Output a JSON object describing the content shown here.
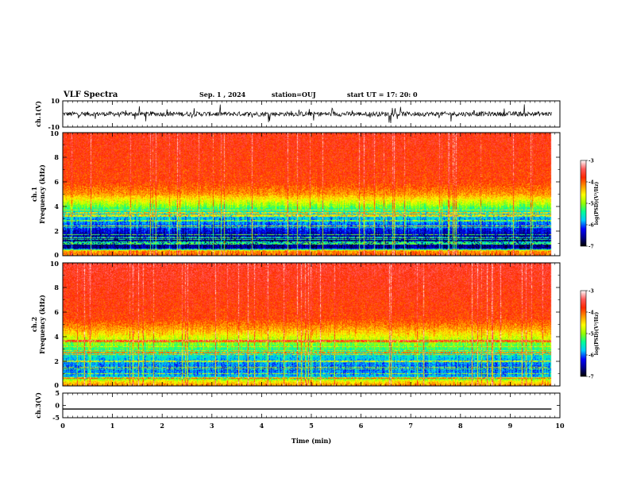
{
  "header": {
    "title": "VLF Spectra",
    "date": "Sep. 1 , 2024",
    "station": "station=OUJ",
    "start": "start UT = 17: 20: 0"
  },
  "colors": {
    "palette": [
      "#000000",
      "#00008b",
      "#0000ff",
      "#00c8ff",
      "#00ff96",
      "#96ff00",
      "#ffff00",
      "#ff9600",
      "#ff2800",
      "#ff5a5a",
      "#ffffff"
    ]
  },
  "chart_data": [
    {
      "type": "line",
      "panel": "ch1-waveform",
      "ylabel": "ch.1(V)",
      "ylim": [
        -10,
        10
      ],
      "yticks": [
        "10",
        "-10"
      ],
      "xlim": [
        0,
        10
      ],
      "baseline": 0,
      "noise_amplitude": 2.5
    },
    {
      "type": "heatmap",
      "panel": "ch1-spectrogram",
      "ylabel_top": "ch.1",
      "ylabel": "Frequency (kHz)",
      "ylim": [
        0,
        10
      ],
      "yticks": [
        "0",
        "2",
        "4",
        "6",
        "8",
        "10"
      ],
      "xlim": [
        0,
        10
      ],
      "data_end_min": 9.83,
      "colorbar": {
        "label": "log(PSD)(V²/Hz)",
        "range": [
          -7,
          -3
        ],
        "ticks": [
          "-3",
          "-4",
          "-5",
          "-6",
          "-7"
        ]
      },
      "profile": [
        {
          "f": 0.0,
          "v": -4.0
        },
        {
          "f": 0.4,
          "v": -4.2
        },
        {
          "f": 0.6,
          "v": -6.6
        },
        {
          "f": 1.5,
          "v": -6.6
        },
        {
          "f": 2.5,
          "v": -6.0
        },
        {
          "f": 3.5,
          "v": -5.6
        },
        {
          "f": 4.2,
          "v": -4.9
        },
        {
          "f": 5.0,
          "v": -4.2
        },
        {
          "f": 6.0,
          "v": -3.85
        },
        {
          "f": 10.0,
          "v": -3.7
        }
      ]
    },
    {
      "type": "heatmap",
      "panel": "ch2-spectrogram",
      "ylabel_top": "ch.2",
      "ylabel": "Frequency (kHz)",
      "ylim": [
        0,
        10
      ],
      "yticks": [
        "0",
        "2",
        "4",
        "6",
        "8",
        "10"
      ],
      "xlim": [
        0,
        10
      ],
      "data_end_min": 9.83,
      "colorbar": {
        "label": "log(PSD)(V²/Hz)",
        "range": [
          -7,
          -3
        ],
        "ticks": [
          "-3",
          "-4",
          "-5",
          "-6",
          "-7"
        ]
      },
      "profile": [
        {
          "f": 0.0,
          "v": -4.1
        },
        {
          "f": 0.4,
          "v": -4.6
        },
        {
          "f": 0.8,
          "v": -5.8
        },
        {
          "f": 1.5,
          "v": -6.0
        },
        {
          "f": 2.5,
          "v": -5.6
        },
        {
          "f": 3.5,
          "v": -5.0
        },
        {
          "f": 4.5,
          "v": -4.3
        },
        {
          "f": 5.5,
          "v": -3.85
        },
        {
          "f": 10.0,
          "v": -3.6
        }
      ]
    },
    {
      "type": "line",
      "panel": "ch3-waveform",
      "ylabel": "ch.3(V)",
      "ylim": [
        -5,
        5
      ],
      "yticks": [
        "5",
        "0",
        "-5"
      ],
      "xlim": [
        0,
        10
      ],
      "baseline": -1.5,
      "noise_amplitude": 0
    }
  ],
  "xaxis": {
    "label": "Time (min)",
    "ticks": [
      "0",
      "1",
      "2",
      "3",
      "4",
      "5",
      "6",
      "7",
      "8",
      "9",
      "10"
    ]
  }
}
